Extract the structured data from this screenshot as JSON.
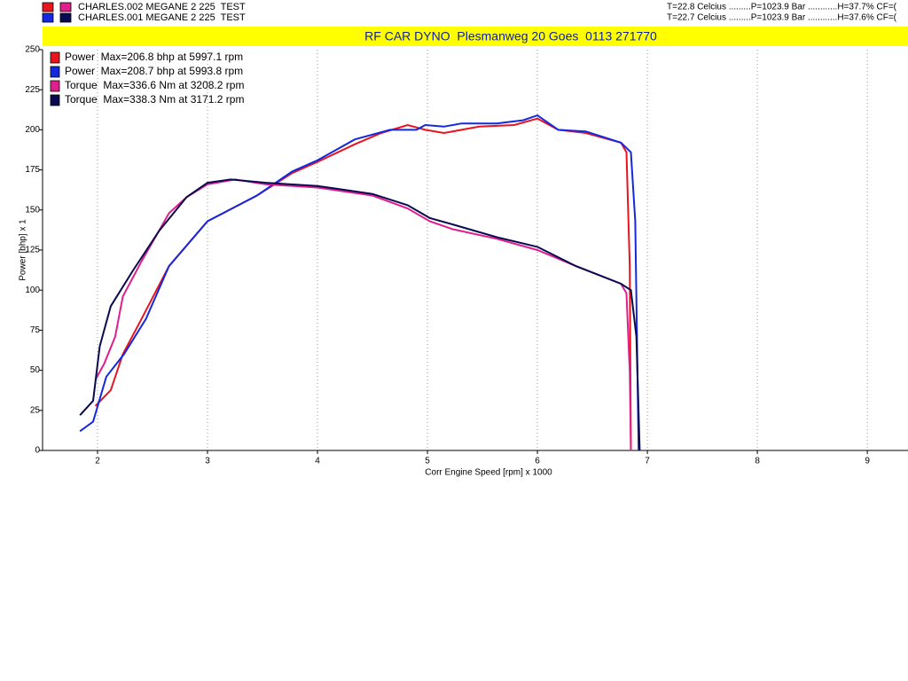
{
  "header": [
    {
      "label": "CHARLES.002 MEGANE 2 225  TEST",
      "conditions": "T=22.8 Celcius .........P=1023.9 Bar ............H=37.7% CF=(",
      "colors": [
        "#e8141e",
        "#e01e8c"
      ]
    },
    {
      "label": "CHARLES.001 MEGANE 2 225  TEST",
      "conditions": "T=22.7 Celcius .........P=1023.9 Bar ............H=37.6% CF=(",
      "colors": [
        "#1428e0",
        "#0a0a50"
      ]
    }
  ],
  "chart_data": {
    "type": "line",
    "title": "RF CAR DYNO  Plesmanweg 20 Goes  0113 271770",
    "x_label": "Corr Engine Speed [rpm] x 1000",
    "y_label": "Power [bhp] x 1",
    "xlim": [
      1.5,
      9.37
    ],
    "ylim": [
      0,
      250
    ],
    "xticks": [
      2,
      3,
      4,
      5,
      6,
      7,
      8,
      9
    ],
    "yticks": [
      0,
      25,
      50,
      75,
      100,
      125,
      150,
      175,
      200,
      225,
      250
    ],
    "grid": "x",
    "legend": "top-left",
    "series": [
      {
        "name": "Power  Max=206.8 bhp at 5997.1 rpm",
        "color": "#e8141e",
        "x": [
          1.98,
          2.12,
          2.23,
          2.4,
          2.65,
          3.0,
          3.45,
          3.77,
          4.0,
          4.34,
          4.58,
          4.82,
          4.98,
          5.15,
          5.47,
          5.79,
          6.0,
          6.19,
          6.44,
          6.76,
          6.81,
          6.84,
          6.85
        ],
        "values": [
          27.7,
          37.6,
          60,
          82,
          115,
          143,
          159,
          173,
          180,
          191,
          198,
          203,
          200,
          198,
          202,
          203,
          207,
          200,
          198,
          192,
          186,
          115,
          0
        ]
      },
      {
        "name": "Power  Max=208.7 bhp at 5993.8 rpm",
        "color": "#1428e0",
        "x": [
          1.84,
          1.96,
          2.08,
          2.24,
          2.44,
          2.65,
          3.0,
          3.45,
          3.77,
          4.0,
          4.34,
          4.66,
          4.9,
          4.98,
          5.15,
          5.31,
          5.63,
          5.87,
          6.0,
          6.19,
          6.44,
          6.76,
          6.85,
          6.89,
          6.92
        ],
        "values": [
          12,
          18,
          46,
          60,
          82,
          115,
          143,
          159,
          174,
          181,
          194,
          200,
          200,
          203,
          202,
          204,
          204,
          206,
          209,
          200,
          199,
          192,
          186,
          143,
          0
        ]
      },
      {
        "name": "Torque  Max=336.6 Nm at 3208.2 rpm",
        "color": "#e01e8c",
        "x": [
          1.98,
          2.06,
          2.16,
          2.23,
          2.4,
          2.65,
          2.81,
          3.0,
          3.25,
          3.53,
          4.0,
          4.5,
          4.82,
          5.02,
          5.23,
          5.63,
          6.0,
          6.35,
          6.76,
          6.81,
          6.84,
          6.85
        ],
        "values": [
          44,
          54,
          71,
          96,
          118,
          148,
          158,
          166,
          169,
          166,
          164,
          159,
          151,
          143,
          138,
          132,
          125,
          115,
          104,
          98,
          49,
          0
        ]
      },
      {
        "name": "Torque  Max=338.3 Nm at 3171.2 rpm",
        "color": "#0a0a50",
        "x": [
          1.84,
          1.96,
          2.02,
          2.12,
          2.32,
          2.56,
          2.81,
          3.0,
          3.21,
          3.53,
          4.0,
          4.5,
          4.82,
          5.02,
          5.23,
          5.63,
          6.0,
          6.35,
          6.76,
          6.85,
          6.9,
          6.93
        ],
        "values": [
          22,
          31,
          65,
          90,
          112,
          137,
          158,
          167,
          169,
          167,
          165,
          160,
          153,
          145,
          141,
          133,
          127,
          115,
          104,
          100,
          71,
          0
        ]
      }
    ]
  }
}
